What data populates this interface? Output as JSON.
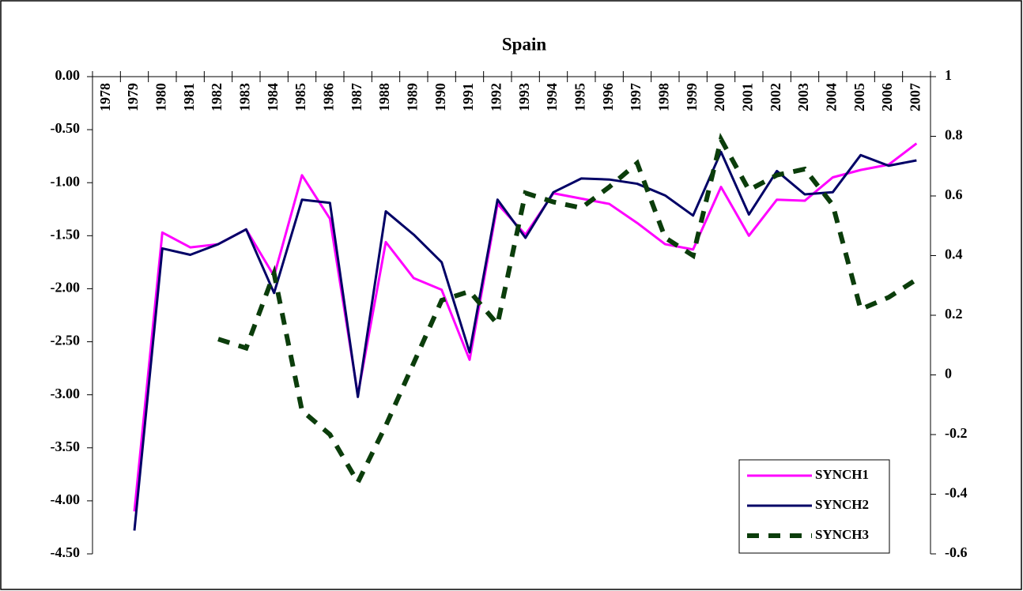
{
  "chart_data": {
    "type": "line",
    "title": "Spain",
    "categories": [
      "1978",
      "1979",
      "1980",
      "1981",
      "1982",
      "1983",
      "1984",
      "1985",
      "1986",
      "1987",
      "1988",
      "1989",
      "1990",
      "1991",
      "1992",
      "1993",
      "1994",
      "1995",
      "1996",
      "1997",
      "1998",
      "1999",
      "2000",
      "2001",
      "2002",
      "2003",
      "2004",
      "2005",
      "2006",
      "2007"
    ],
    "series": [
      {
        "name": "SYNCH1",
        "color": "#ff00ff",
        "values": [
          null,
          -4.1,
          -1.47,
          -1.61,
          -1.58,
          -1.44,
          -1.88,
          -0.93,
          -1.34,
          -3.0,
          -1.56,
          -1.9,
          -2.01,
          -2.67,
          -1.2,
          -1.49,
          -1.1,
          -1.15,
          -1.2,
          -1.38,
          -1.58,
          -1.63,
          -1.04,
          -1.5,
          -1.16,
          -1.17,
          -0.95,
          -0.88,
          -0.83,
          -0.63
        ]
      },
      {
        "name": "SYNCH2",
        "color": "#000066",
        "values": [
          null,
          -4.28,
          -1.62,
          -1.68,
          -1.58,
          -1.44,
          -2.04,
          -1.16,
          -1.19,
          -3.02,
          -1.27,
          -1.49,
          -1.75,
          -2.6,
          -1.16,
          -1.52,
          -1.09,
          -0.96,
          -0.97,
          -1.01,
          -1.12,
          -1.31,
          -0.71,
          -1.3,
          -0.89,
          -1.11,
          -1.09,
          -0.74,
          -0.84,
          -0.79
        ]
      },
      {
        "name": "SYNCH3",
        "color": "#0b3d0b",
        "axis": "y2",
        "dashed": true,
        "values": [
          null,
          null,
          null,
          null,
          0.12,
          0.09,
          0.34,
          -0.12,
          -0.2,
          -0.36,
          -0.17,
          0.04,
          0.25,
          0.28,
          0.17,
          0.61,
          0.58,
          0.56,
          0.63,
          0.71,
          0.46,
          0.4,
          0.79,
          0.62,
          0.67,
          0.69,
          0.57,
          0.22,
          0.26,
          0.32
        ]
      }
    ],
    "ylim": [
      -4.5,
      0
    ],
    "yticks": [
      {
        "value": 0,
        "label": "0.00"
      },
      {
        "value": -0.5,
        "label": "-0.50"
      },
      {
        "value": -1,
        "label": "-1.00"
      },
      {
        "value": -1.5,
        "label": "-1.50"
      },
      {
        "value": -2,
        "label": "-2.00"
      },
      {
        "value": -2.5,
        "label": "-2.50"
      },
      {
        "value": -3,
        "label": "-3.00"
      },
      {
        "value": -3.5,
        "label": "-3.50"
      },
      {
        "value": -4,
        "label": "-4.00"
      },
      {
        "value": -4.5,
        "label": "-4.50"
      }
    ],
    "y2lim": [
      -0.6,
      1
    ],
    "y2ticks": [
      1,
      0.8,
      0.6,
      0.4,
      0.2,
      0,
      -0.2,
      -0.4,
      -0.6
    ],
    "legend": "lower right",
    "grid": false
  }
}
